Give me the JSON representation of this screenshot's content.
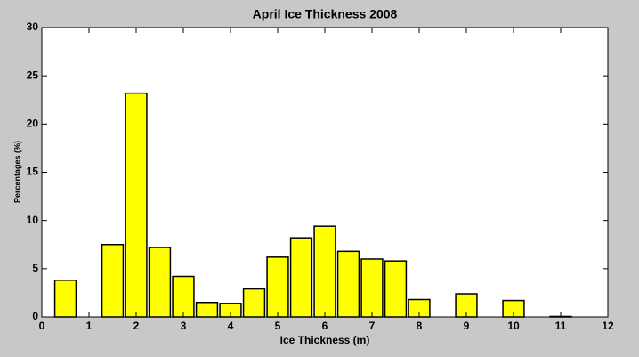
{
  "chart_data": {
    "type": "bar",
    "title": "April Ice Thickness 2008",
    "x_label": "Ice Thickness (m)",
    "y_label": "Percentages (%)",
    "x": [
      0.5,
      1.5,
      2.0,
      2.5,
      3.0,
      3.5,
      4.0,
      4.5,
      5.0,
      5.5,
      6.0,
      6.5,
      7.0,
      7.5,
      8.0,
      9.0,
      10.0,
      11.0
    ],
    "values": [
      3.8,
      7.5,
      23.2,
      7.2,
      4.2,
      1.5,
      1.4,
      2.9,
      6.2,
      8.2,
      9.4,
      6.8,
      6.0,
      5.8,
      1.8,
      2.4,
      1.7,
      0.05
    ],
    "color": "#ffff00",
    "xlim": [
      0,
      12
    ],
    "xticks": [
      0,
      1,
      2,
      3,
      4,
      5,
      6,
      7,
      8,
      9,
      10,
      11,
      12
    ],
    "ylim": [
      0,
      30
    ],
    "yticks": [
      0,
      5,
      10,
      15,
      20,
      25,
      30
    ]
  }
}
